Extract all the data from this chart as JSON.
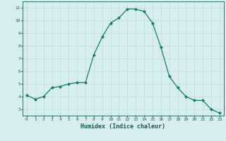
{
  "x": [
    0,
    1,
    2,
    3,
    4,
    5,
    6,
    7,
    8,
    9,
    10,
    11,
    12,
    13,
    14,
    15,
    16,
    17,
    18,
    19,
    20,
    21,
    22,
    23
  ],
  "y": [
    4.1,
    3.8,
    4.0,
    4.7,
    4.8,
    5.0,
    5.1,
    5.1,
    7.3,
    8.7,
    9.8,
    10.2,
    10.9,
    10.9,
    10.7,
    9.8,
    7.9,
    5.6,
    4.7,
    4.0,
    3.7,
    3.7,
    3.0,
    2.7
  ],
  "xlabel": "Humidex (Indice chaleur)",
  "ylabel": "",
  "xlim": [
    -0.5,
    23.5
  ],
  "ylim": [
    2.5,
    11.5
  ],
  "yticks": [
    3,
    4,
    5,
    6,
    7,
    8,
    9,
    10,
    11
  ],
  "xticks": [
    0,
    1,
    2,
    3,
    4,
    5,
    6,
    7,
    8,
    9,
    10,
    11,
    12,
    13,
    14,
    15,
    16,
    17,
    18,
    19,
    20,
    21,
    22,
    23
  ],
  "line_color": "#1a7a6e",
  "marker_color": "#1a7a6e",
  "bg_color": "#d6eef0",
  "grid_color": "#c0d8da",
  "label_color": "#1a5a5a",
  "tick_color": "#1a5a5a"
}
